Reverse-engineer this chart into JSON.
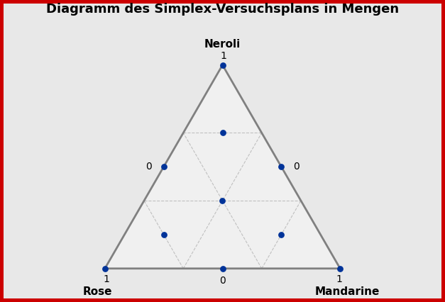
{
  "title": "Diagramm des Simplex-Versuchsplans in Mengen",
  "vertex_labels": [
    "Neroli",
    "Rose",
    "Mandarine"
  ],
  "background_color": "#e8e8e8",
  "triangle_fill": "#f0f0f0",
  "border_color": "#cc0000",
  "border_width": 7,
  "triangle_color": "#808080",
  "dot_color": "#003399",
  "dot_size": 40,
  "title_fontsize": 13,
  "label_fontsize": 11,
  "tick_fontsize": 10,
  "tick_color": "#000000",
  "grid_color": "#c0c0c0",
  "grid_linestyle": "--",
  "simplex_points": [
    [
      1.0,
      0.0,
      0.0
    ],
    [
      0.0,
      1.0,
      0.0
    ],
    [
      0.0,
      0.0,
      1.0
    ],
    [
      0.5,
      0.5,
      0.0
    ],
    [
      0.5,
      0.0,
      0.5
    ],
    [
      0.0,
      0.5,
      0.5
    ],
    [
      0.333333,
      0.333333,
      0.333333
    ],
    [
      0.666667,
      0.166667,
      0.166667
    ],
    [
      0.166667,
      0.666667,
      0.166667
    ],
    [
      0.166667,
      0.166667,
      0.666667
    ]
  ]
}
